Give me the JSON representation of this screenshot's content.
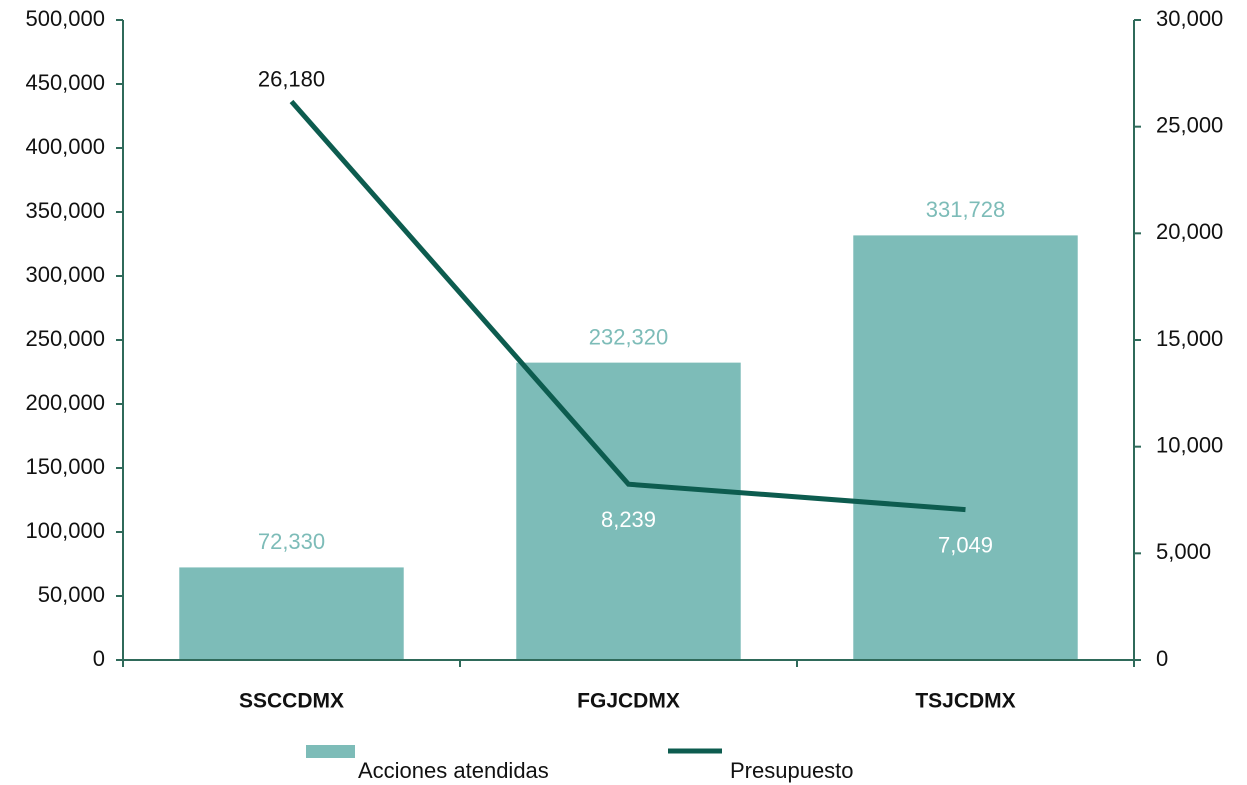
{
  "chart_data": {
    "type": "bar",
    "categories": [
      "SSCCDMX",
      "FGJCDMX",
      "TSJCDMX"
    ],
    "series": [
      {
        "name": "Acciones atendidas",
        "type": "bar",
        "color": "#7dbcb8",
        "values": [
          72330,
          232320,
          331728
        ],
        "value_labels": [
          "72,330",
          "232,320",
          "331,728"
        ]
      },
      {
        "name": "Presupuesto",
        "type": "line",
        "axis": "y2",
        "color": "#0d5c4f",
        "values": [
          26180,
          8239,
          7049
        ],
        "value_labels": [
          "26,180",
          "8,239",
          "7,049"
        ]
      }
    ],
    "ylim": [
      0,
      500000
    ],
    "yticks": [
      0,
      {
        "value": 50000,
        "label": "50,000"
      },
      {
        "value": 100000,
        "label": "100,000"
      },
      {
        "value": 150000,
        "label": "150,000"
      },
      {
        "value": 200000,
        "label": "200,000"
      },
      {
        "value": 250000,
        "label": "250,000"
      },
      {
        "value": 300000,
        "label": "300,000"
      },
      {
        "value": 350000,
        "label": "350,000"
      },
      {
        "value": 400000,
        "label": "400,000"
      },
      {
        "value": 450000,
        "label": "450,000"
      },
      {
        "value": 500000,
        "label": "500,000"
      }
    ],
    "y2lim": [
      0,
      30000
    ],
    "y2ticks": [
      0,
      {
        "value": 5000,
        "label": "5,000"
      },
      {
        "value": 10000,
        "label": "10,000"
      },
      {
        "value": 15000,
        "label": "15,000"
      },
      {
        "value": 20000,
        "label": "20,000"
      },
      {
        "value": 25000,
        "label": "25,000"
      },
      {
        "value": 30000,
        "label": "30,000"
      }
    ],
    "legend": "bottom"
  }
}
